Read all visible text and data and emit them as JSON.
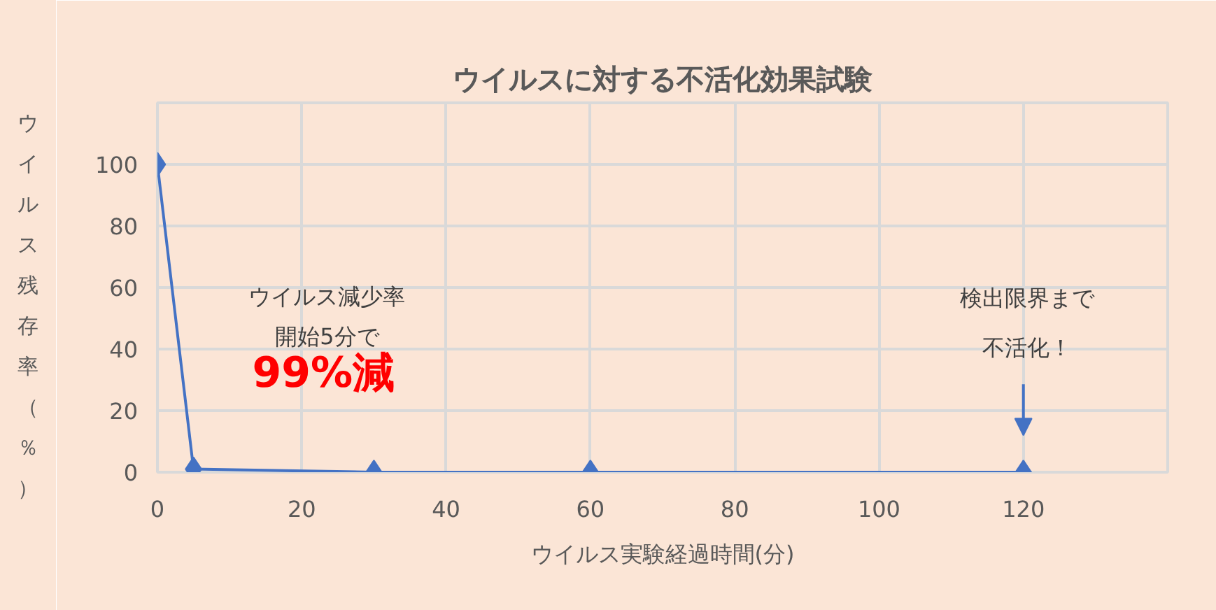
{
  "chart_data": {
    "type": "line",
    "title": "ウイルスに対する不活化効果試験",
    "xlabel": "ウイルス実験経過時間(分)",
    "ylabel": "ウイルス残存率（％）",
    "x": [
      0,
      5,
      30,
      60,
      120
    ],
    "series": [
      {
        "color": "#4472c4",
        "values": [
          100,
          1,
          0,
          0,
          0
        ]
      }
    ],
    "xlim": [
      0,
      140
    ],
    "xticks": [
      0,
      20,
      40,
      60,
      80,
      100,
      120
    ],
    "ylim": [
      0,
      120
    ],
    "yticks": [
      0,
      20,
      40,
      60,
      80,
      100,
      {
        "value": 120,
        "label": null
      }
    ],
    "grid": true,
    "marker": "diamond",
    "line_style": "solid",
    "annotations": [
      "ウイルス減少率開始5分で",
      "99%減",
      "検出限界まで不活化！"
    ]
  }
}
